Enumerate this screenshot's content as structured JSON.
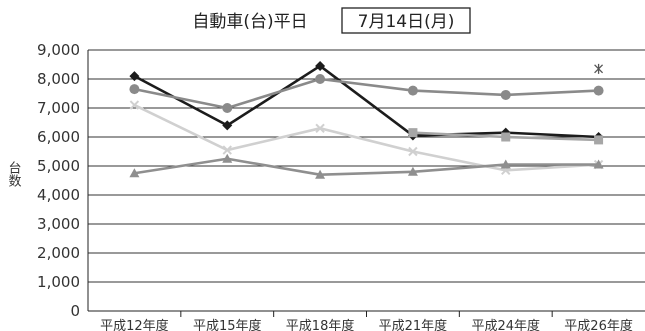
{
  "chart_data": {
    "type": "line",
    "title": "自動車(台)平日",
    "date_label": "7月14日(月)",
    "ylabel": "台数",
    "xlabel": "",
    "ylim": [
      0,
      9000
    ],
    "ytick_step": 1000,
    "yticks": [
      "0",
      "1,000",
      "2,000",
      "3,000",
      "4,000",
      "5,000",
      "6,000",
      "7,000",
      "8,000",
      "9,000"
    ],
    "categories": [
      "平成12年度",
      "平成15年度",
      "平成18年度",
      "平成21年度",
      "平成24年度",
      "平成26年度"
    ],
    "grid": true,
    "legend": "none",
    "series": [
      {
        "color": "#1c1c1c",
        "marker": "diamond",
        "values": [
          8100,
          6400,
          8450,
          6050,
          6150,
          6000
        ]
      },
      {
        "color": "#8a8a8a",
        "marker": "circle",
        "values": [
          7650,
          7000,
          8000,
          7600,
          7450,
          7600
        ]
      },
      {
        "color": "#d0d0d0",
        "marker": "x",
        "values": [
          7100,
          5550,
          6300,
          5500,
          4850,
          5050
        ]
      },
      {
        "color": "#8f8f8f",
        "marker": "triangle",
        "values": [
          4750,
          5250,
          4700,
          4800,
          5050,
          5050
        ]
      },
      {
        "color": "#a6a6a6",
        "marker": "square",
        "values": [
          null,
          null,
          null,
          6150,
          6000,
          5900
        ]
      },
      {
        "color": "#555555",
        "marker": "star",
        "values": [
          null,
          null,
          null,
          null,
          null,
          8350
        ]
      }
    ]
  }
}
